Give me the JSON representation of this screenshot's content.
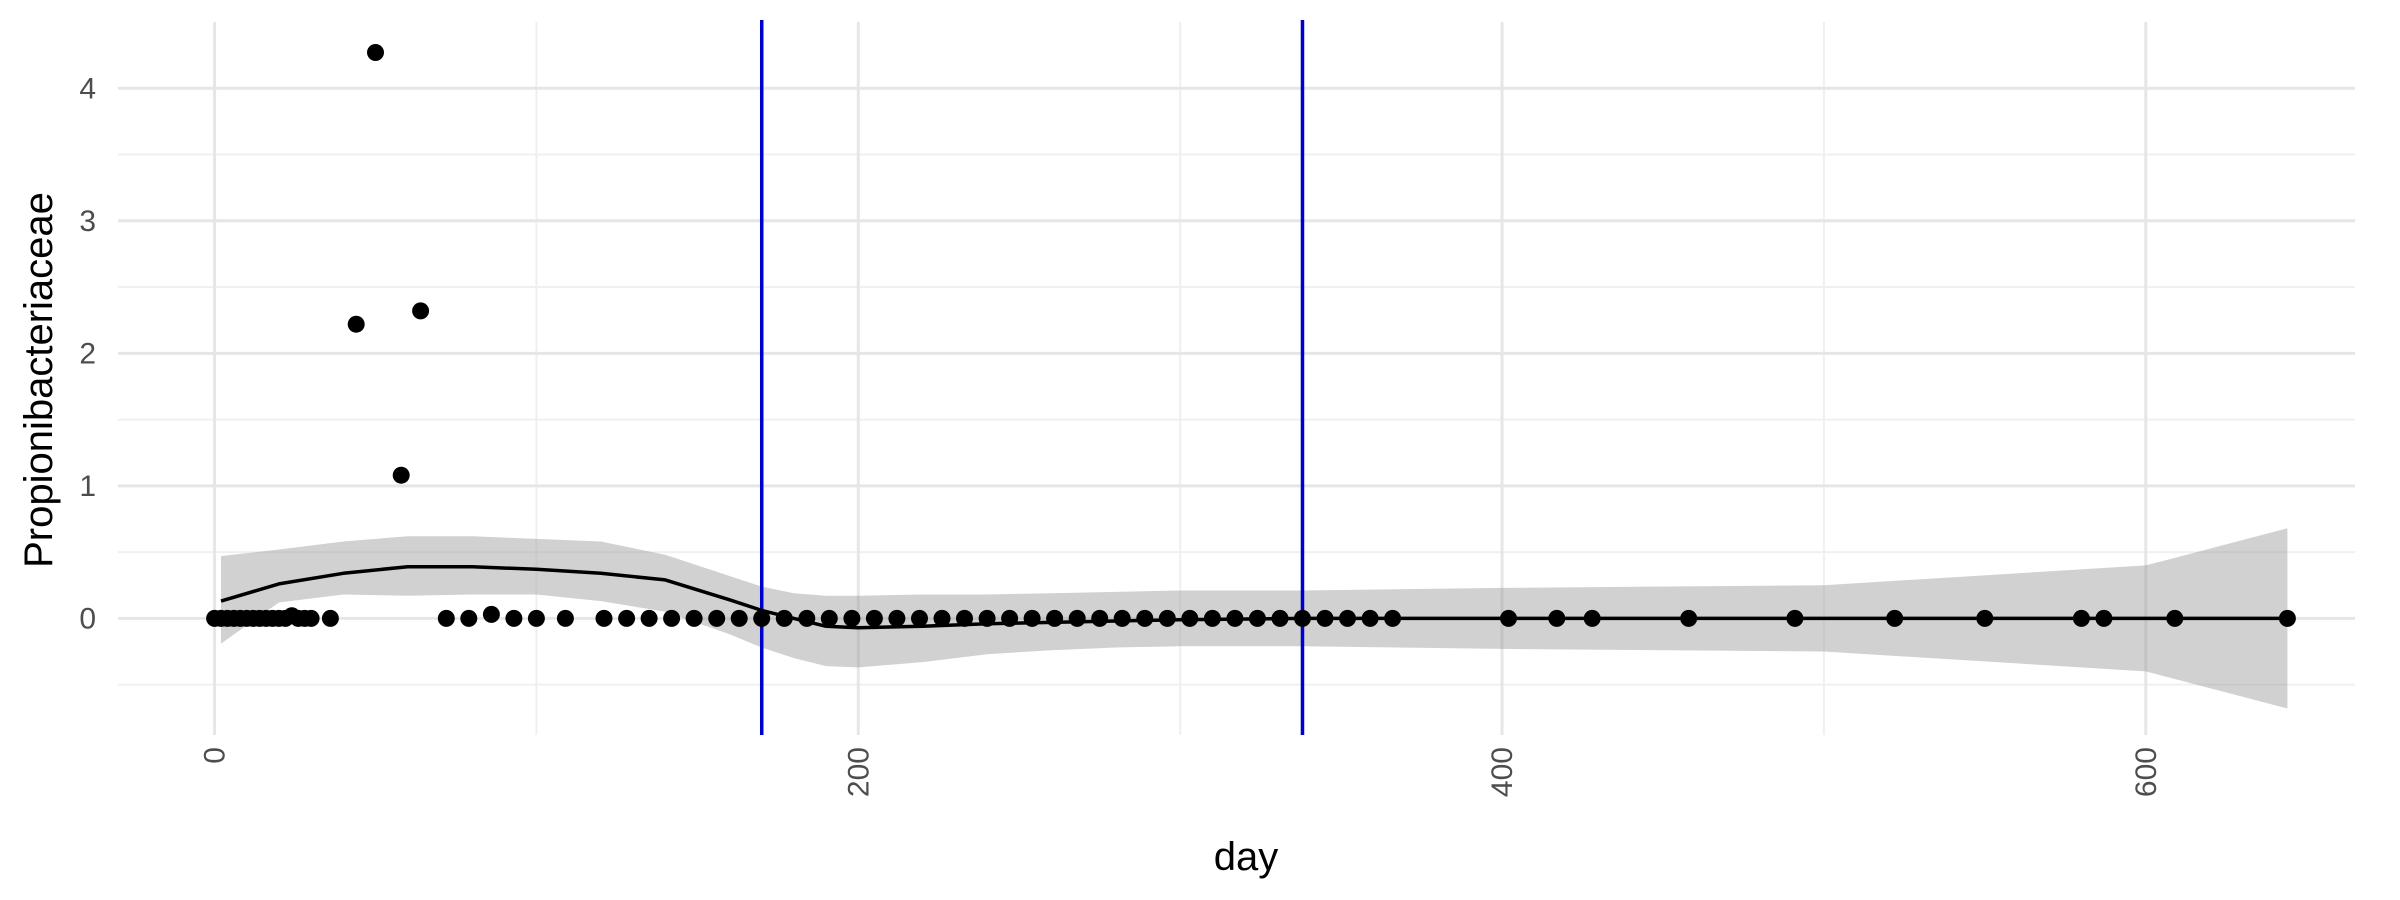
{
  "chart_data": {
    "type": "scatter",
    "title": "",
    "xlabel": "day",
    "ylabel": "Propionibacteriaceae",
    "xlim": [
      -30,
      665
    ],
    "ylim": [
      -0.88,
      4.5
    ],
    "x_ticks": [
      0,
      200,
      400,
      600
    ],
    "x_tick_labels": [
      "0",
      "200",
      "400",
      "600"
    ],
    "x_minor_ticks": [
      100,
      300,
      500
    ],
    "y_ticks": [
      0,
      1,
      2,
      3,
      4
    ],
    "y_tick_labels": [
      "0",
      "1",
      "2",
      "3",
      "4"
    ],
    "y_minor_ticks": [
      -0.5,
      0.5,
      1.5,
      2.5,
      3.5
    ],
    "grid": true,
    "legend": "none",
    "colors": {
      "points": "#000000",
      "smooth_line": "#000000",
      "confidence_band": "#999999",
      "vline": "#0000cc",
      "grid_major": "#e6e6e6",
      "grid_minor": "#f0f0f0"
    },
    "vlines": [
      170,
      338
    ],
    "points": [
      {
        "x": 0,
        "y": 0
      },
      {
        "x": 2,
        "y": 0
      },
      {
        "x": 4,
        "y": 0
      },
      {
        "x": 6,
        "y": 0
      },
      {
        "x": 8,
        "y": 0
      },
      {
        "x": 10,
        "y": 0
      },
      {
        "x": 12,
        "y": 0
      },
      {
        "x": 14,
        "y": 0
      },
      {
        "x": 16,
        "y": 0
      },
      {
        "x": 18,
        "y": 0
      },
      {
        "x": 20,
        "y": 0
      },
      {
        "x": 22,
        "y": 0
      },
      {
        "x": 24,
        "y": 0.02
      },
      {
        "x": 26,
        "y": 0
      },
      {
        "x": 28,
        "y": 0
      },
      {
        "x": 30,
        "y": 0
      },
      {
        "x": 36,
        "y": 0
      },
      {
        "x": 44,
        "y": 2.22
      },
      {
        "x": 50,
        "y": 4.27
      },
      {
        "x": 58,
        "y": 1.08
      },
      {
        "x": 64,
        "y": 2.32
      },
      {
        "x": 72,
        "y": 0
      },
      {
        "x": 79,
        "y": 0
      },
      {
        "x": 86,
        "y": 0.03
      },
      {
        "x": 93,
        "y": 0
      },
      {
        "x": 100,
        "y": 0
      },
      {
        "x": 109,
        "y": 0
      },
      {
        "x": 121,
        "y": 0
      },
      {
        "x": 128,
        "y": 0
      },
      {
        "x": 135,
        "y": 0
      },
      {
        "x": 142,
        "y": 0
      },
      {
        "x": 149,
        "y": 0
      },
      {
        "x": 156,
        "y": 0
      },
      {
        "x": 163,
        "y": 0
      },
      {
        "x": 170,
        "y": 0
      },
      {
        "x": 177,
        "y": 0
      },
      {
        "x": 184,
        "y": 0
      },
      {
        "x": 191,
        "y": 0
      },
      {
        "x": 198,
        "y": 0
      },
      {
        "x": 205,
        "y": 0
      },
      {
        "x": 212,
        "y": 0
      },
      {
        "x": 219,
        "y": 0
      },
      {
        "x": 226,
        "y": 0
      },
      {
        "x": 233,
        "y": 0
      },
      {
        "x": 240,
        "y": 0
      },
      {
        "x": 247,
        "y": 0
      },
      {
        "x": 254,
        "y": 0
      },
      {
        "x": 261,
        "y": 0
      },
      {
        "x": 268,
        "y": 0
      },
      {
        "x": 275,
        "y": 0
      },
      {
        "x": 282,
        "y": 0
      },
      {
        "x": 289,
        "y": 0
      },
      {
        "x": 296,
        "y": 0
      },
      {
        "x": 303,
        "y": 0
      },
      {
        "x": 310,
        "y": 0
      },
      {
        "x": 317,
        "y": 0
      },
      {
        "x": 324,
        "y": 0
      },
      {
        "x": 331,
        "y": 0
      },
      {
        "x": 338,
        "y": 0
      },
      {
        "x": 345,
        "y": 0
      },
      {
        "x": 352,
        "y": 0
      },
      {
        "x": 359,
        "y": 0
      },
      {
        "x": 366,
        "y": 0
      },
      {
        "x": 402,
        "y": 0
      },
      {
        "x": 417,
        "y": 0
      },
      {
        "x": 428,
        "y": 0
      },
      {
        "x": 458,
        "y": 0
      },
      {
        "x": 491,
        "y": 0
      },
      {
        "x": 522,
        "y": 0
      },
      {
        "x": 550,
        "y": 0
      },
      {
        "x": 580,
        "y": 0
      },
      {
        "x": 587,
        "y": 0
      },
      {
        "x": 609,
        "y": 0
      },
      {
        "x": 644,
        "y": 0
      }
    ],
    "smooth": {
      "x": [
        2,
        20,
        40,
        60,
        80,
        100,
        120,
        140,
        160,
        170,
        180,
        190,
        200,
        220,
        240,
        260,
        280,
        300,
        338,
        400,
        500,
        600,
        644
      ],
      "y": [
        0.13,
        0.26,
        0.34,
        0.39,
        0.39,
        0.37,
        0.34,
        0.29,
        0.14,
        0.06,
        0.0,
        -0.06,
        -0.07,
        -0.06,
        -0.04,
        -0.03,
        -0.02,
        -0.01,
        0.0,
        0.0,
        0.0,
        0.0,
        0.0
      ],
      "lower": [
        -0.19,
        0.12,
        0.18,
        0.17,
        0.18,
        0.18,
        0.13,
        0.05,
        -0.12,
        -0.22,
        -0.3,
        -0.36,
        -0.37,
        -0.33,
        -0.27,
        -0.24,
        -0.22,
        -0.21,
        -0.21,
        -0.23,
        -0.25,
        -0.4,
        -0.68
      ],
      "upper": [
        0.47,
        0.52,
        0.58,
        0.62,
        0.62,
        0.6,
        0.58,
        0.48,
        0.32,
        0.24,
        0.19,
        0.17,
        0.17,
        0.18,
        0.18,
        0.19,
        0.2,
        0.21,
        0.21,
        0.23,
        0.25,
        0.4,
        0.68
      ]
    }
  }
}
